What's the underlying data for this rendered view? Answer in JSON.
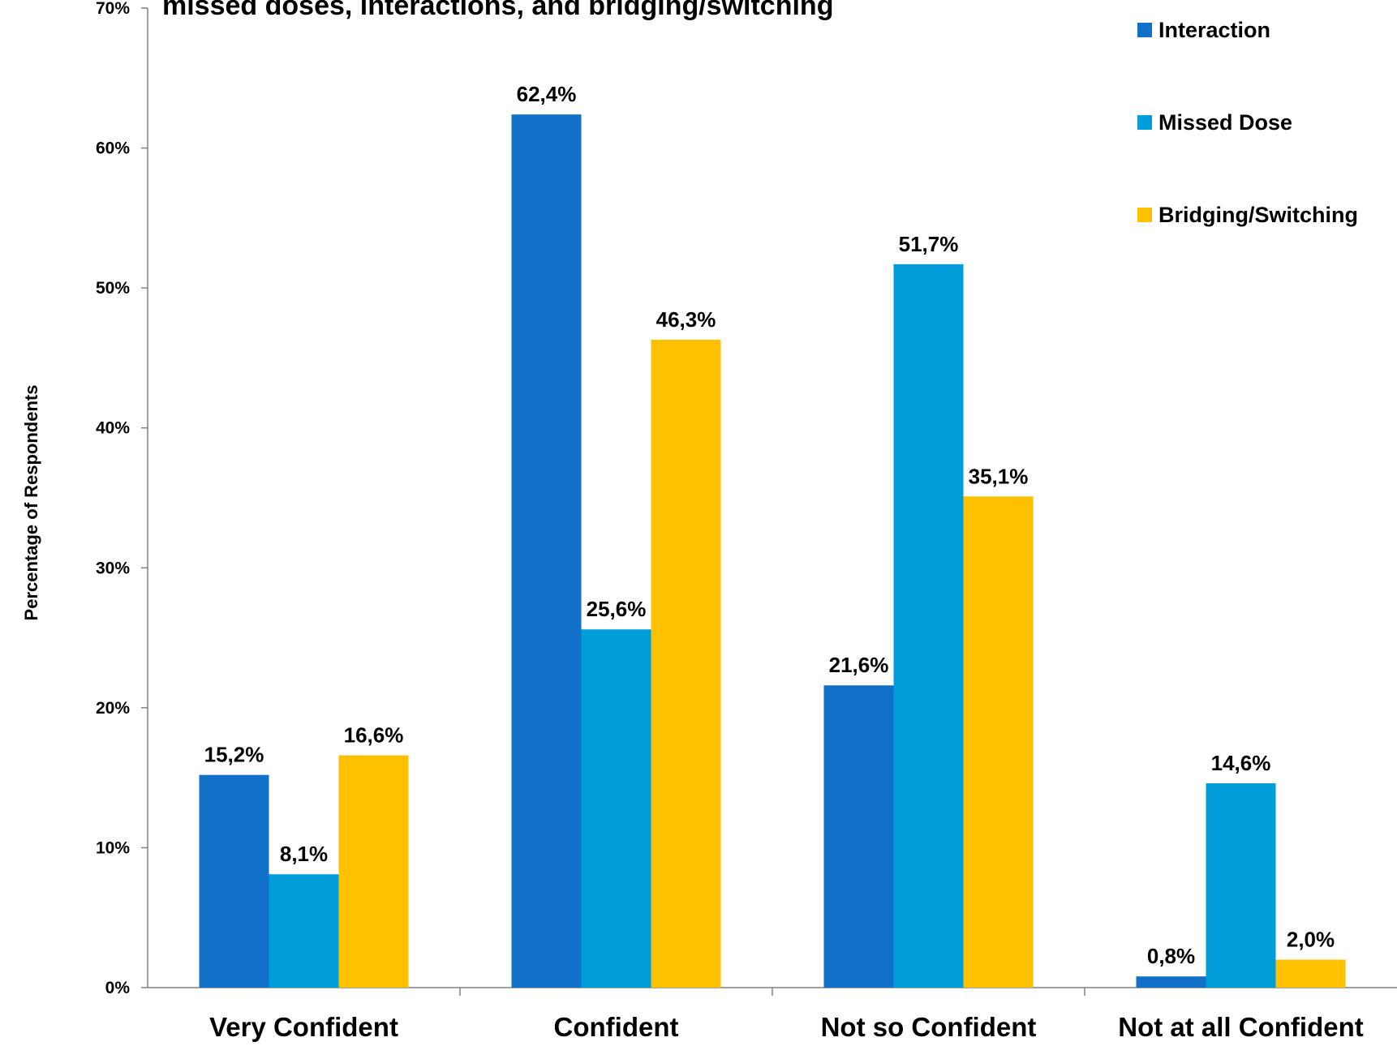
{
  "chart_data": {
    "type": "bar",
    "title": "missed doses, interactions, and bridging/switching",
    "xlabel": "",
    "ylabel": "Percentage of Respondents",
    "ylim": [
      0,
      70
    ],
    "yticks": [
      0,
      10,
      20,
      30,
      40,
      50,
      60,
      70
    ],
    "ytick_labels": [
      "0%",
      "10%",
      "20%",
      "30%",
      "40%",
      "50%",
      "60%",
      "70%"
    ],
    "categories": [
      "Very Confident",
      "Confident",
      "Not so Confident",
      "Not at all Confident"
    ],
    "series": [
      {
        "name": "Interaction",
        "color": "#1170C8",
        "values": [
          15.2,
          62.4,
          21.6,
          0.8
        ],
        "labels": [
          "15,2%",
          "62,4%",
          "21,6%",
          "0,8%"
        ]
      },
      {
        "name": "Missed Dose",
        "color": "#009DDB",
        "values": [
          8.1,
          25.6,
          51.7,
          14.6
        ],
        "labels": [
          "8,1%",
          "25,6%",
          "51,7%",
          "14,6%"
        ]
      },
      {
        "name": "Bridging/Switching",
        "color": "#FFC000",
        "values": [
          16.6,
          46.3,
          35.1,
          2.0
        ],
        "labels": [
          "16,6%",
          "46,3%",
          "35,1%",
          "2,0%"
        ]
      }
    ],
    "grid": false,
    "legend_position": "top-right"
  }
}
